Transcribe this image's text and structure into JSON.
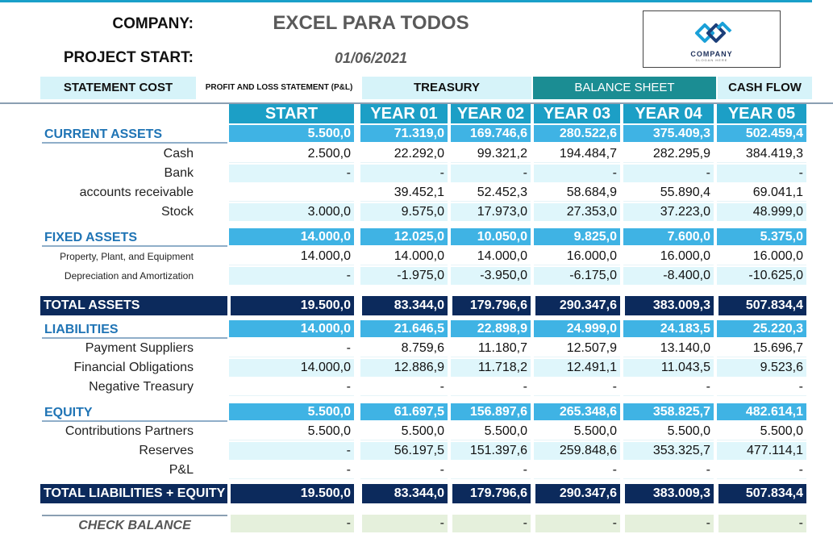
{
  "header": {
    "company_label": "COMPANY:",
    "company_name": "EXCEL PARA TODOS",
    "start_label": "PROJECT START:",
    "start_date": "01/06/2021",
    "logo_text": "COMPANY",
    "logo_slogan": "SLOGAN HERE"
  },
  "tabs": [
    {
      "label": "STATEMENT COST"
    },
    {
      "label": "PROFIT AND LOSS STATEMENT (P&L)"
    },
    {
      "label": "TREASURY"
    },
    {
      "label": "BALANCE SHEET"
    },
    {
      "label": "CASH FLOW"
    }
  ],
  "columns": [
    "START",
    "YEAR 01",
    "YEAR 02",
    "YEAR 03",
    "YEAR 04",
    "YEAR 05"
  ],
  "rows": [
    {
      "label": "CURRENT ASSETS",
      "kind": "sect",
      "values": [
        "5.500,0",
        "71.319,0",
        "169.746,6",
        "280.522,6",
        "375.409,3",
        "502.459,4"
      ]
    },
    {
      "label": "Cash",
      "kind": "white",
      "values": [
        "2.500,0",
        "22.292,0",
        "99.321,2",
        "194.484,7",
        "282.295,9",
        "384.419,3"
      ]
    },
    {
      "label": "Bank",
      "kind": "light",
      "values": [
        "-",
        "-",
        "-",
        "-",
        "-",
        "-"
      ]
    },
    {
      "label": "accounts receivable",
      "kind": "white",
      "values": [
        "",
        "39.452,1",
        "52.452,3",
        "58.684,9",
        "55.890,4",
        "69.041,1"
      ]
    },
    {
      "label": "Stock",
      "kind": "light",
      "values": [
        "3.000,0",
        "9.575,0",
        "17.973,0",
        "27.353,0",
        "37.223,0",
        "48.999,0"
      ]
    },
    {
      "label": "FIXED ASSETS",
      "kind": "sect",
      "values": [
        "14.000,0",
        "12.025,0",
        "10.050,0",
        "9.825,0",
        "7.600,0",
        "5.375,0"
      ]
    },
    {
      "label": "Property, Plant, and Equipment",
      "kind": "white",
      "small": true,
      "values": [
        "14.000,0",
        "14.000,0",
        "14.000,0",
        "16.000,0",
        "16.000,0",
        "16.000,0"
      ]
    },
    {
      "label": "Depreciation and Amortization",
      "kind": "light",
      "small": true,
      "values": [
        "-",
        "-1.975,0",
        "-3.950,0",
        "-6.175,0",
        "-8.400,0",
        "-10.625,0"
      ]
    },
    {
      "label": "TOTAL ASSETS",
      "kind": "tot",
      "values": [
        "19.500,0",
        "83.344,0",
        "179.796,6",
        "290.347,6",
        "383.009,3",
        "507.834,4"
      ]
    },
    {
      "label": "LIABILITIES",
      "kind": "sect",
      "values": [
        "14.000,0",
        "21.646,5",
        "22.898,9",
        "24.999,0",
        "24.183,5",
        "25.220,3"
      ]
    },
    {
      "label": "Payment Suppliers",
      "kind": "white",
      "values": [
        "-",
        "8.759,6",
        "11.180,7",
        "12.507,9",
        "13.140,0",
        "15.696,7"
      ]
    },
    {
      "label": "Financial Obligations",
      "kind": "light",
      "values": [
        "14.000,0",
        "12.886,9",
        "11.718,2",
        "12.491,1",
        "11.043,5",
        "9.523,6"
      ]
    },
    {
      "label": "Negative Treasury",
      "kind": "white",
      "values": [
        "-",
        "-",
        "-",
        "-",
        "-",
        "-"
      ]
    },
    {
      "label": "EQUITY",
      "kind": "sect",
      "values": [
        "5.500,0",
        "61.697,5",
        "156.897,6",
        "265.348,6",
        "358.825,7",
        "482.614,1"
      ]
    },
    {
      "label": "Contributions Partners",
      "kind": "white",
      "values": [
        "5.500,0",
        "5.500,0",
        "5.500,0",
        "5.500,0",
        "5.500,0",
        "5.500,0"
      ]
    },
    {
      "label": "Reserves",
      "kind": "light",
      "values": [
        "-",
        "56.197,5",
        "151.397,6",
        "259.848,6",
        "353.325,7",
        "477.114,1"
      ]
    },
    {
      "label": "P&L",
      "kind": "white",
      "values": [
        "-",
        "-",
        "-",
        "-",
        "-",
        "-"
      ]
    },
    {
      "label": "TOTAL LIABILITIES + EQUITY",
      "kind": "tot",
      "values": [
        "19.500,0",
        "83.344,0",
        "179.796,6",
        "290.347,6",
        "383.009,3",
        "507.834,4"
      ]
    },
    {
      "label": "CHECK BALANCE",
      "kind": "check",
      "values": [
        "-",
        "-",
        "-",
        "-",
        "-",
        "-"
      ]
    }
  ],
  "colors": {
    "section_fill": "#3fb3e4",
    "total_fill": "#0c2a5c",
    "light_fill": "#dff6fb",
    "active_tab": "#1b8d93",
    "header_fill": "#1c9fc6",
    "check_fill": "#e5f0dc"
  }
}
